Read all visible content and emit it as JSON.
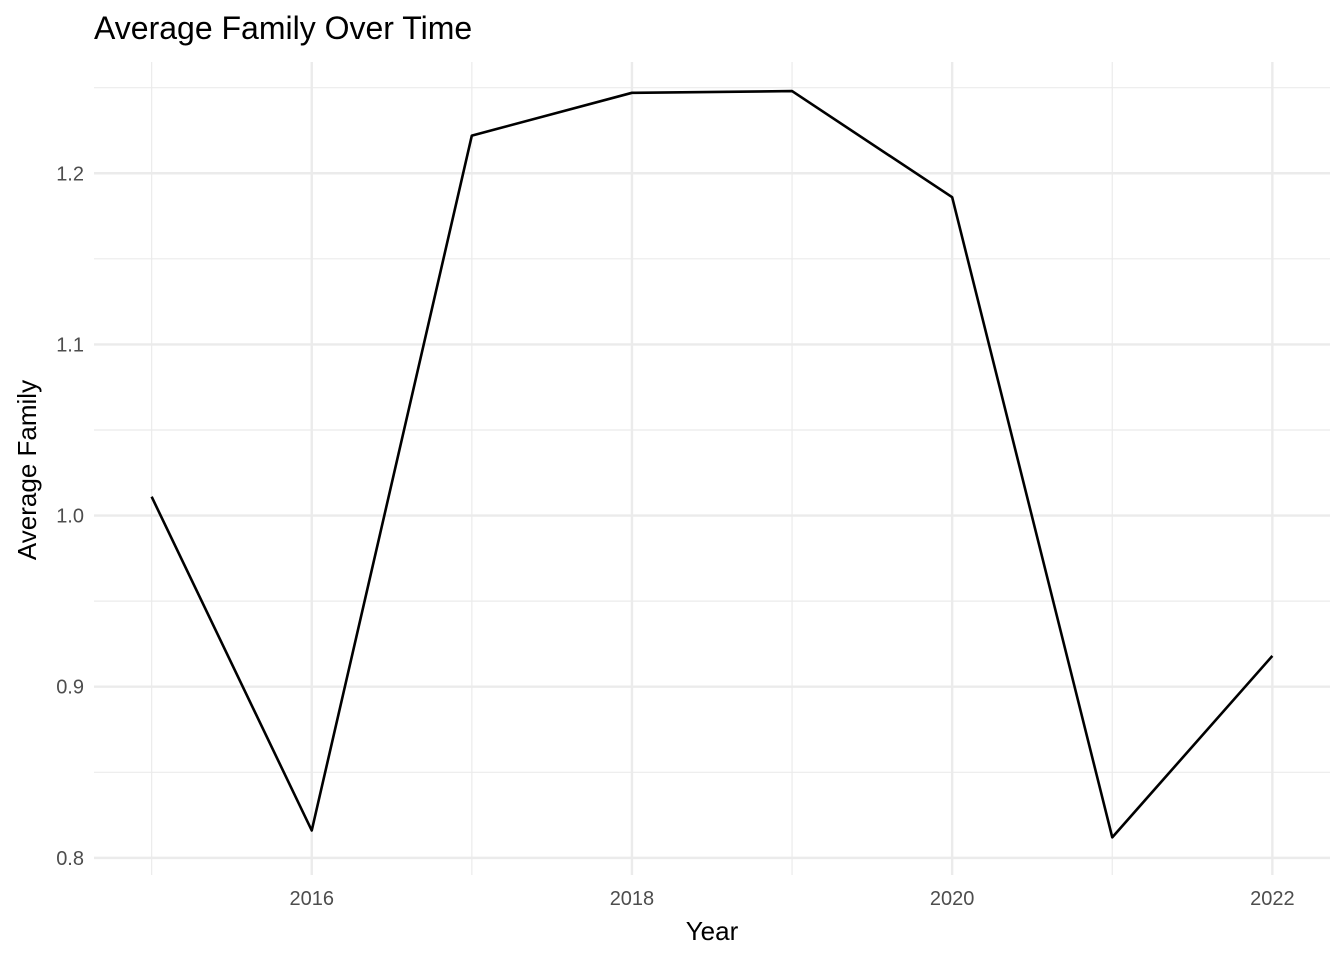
{
  "chart_data": {
    "type": "line",
    "title": "Average Family Over Time",
    "xlabel": "Year",
    "ylabel": "Average Family",
    "x": [
      2015,
      2016,
      2017,
      2018,
      2019,
      2020,
      2021,
      2022
    ],
    "series": [
      {
        "values": [
          1.011,
          0.816,
          1.222,
          1.247,
          1.248,
          1.186,
          0.812,
          0.918
        ]
      }
    ],
    "xlim": [
      2014.64,
      2022.36
    ],
    "ylim": [
      0.79,
      1.265
    ],
    "x_ticks": [
      {
        "value": 2016,
        "label": "2016"
      },
      {
        "value": 2018,
        "label": "2018"
      },
      {
        "value": 2020,
        "label": "2020"
      },
      {
        "value": 2022,
        "label": "2022"
      }
    ],
    "x_minor_ticks": [
      2015,
      2017,
      2019,
      2021
    ],
    "y_ticks": [
      {
        "value": 0.8,
        "label": "0.8"
      },
      {
        "value": 0.9,
        "label": "0.9"
      },
      {
        "value": 1.0,
        "label": "1.0"
      },
      {
        "value": 1.1,
        "label": "1.1"
      },
      {
        "value": 1.2,
        "label": "1.2"
      }
    ],
    "y_minor_ticks": [
      0.85,
      0.95,
      1.05,
      1.15,
      1.25
    ],
    "grid": true,
    "legend": "none",
    "colors": {
      "line": "#000000",
      "grid": "#ebebeb",
      "tick_text": "#4d4d4d",
      "background": "#ffffff"
    }
  }
}
